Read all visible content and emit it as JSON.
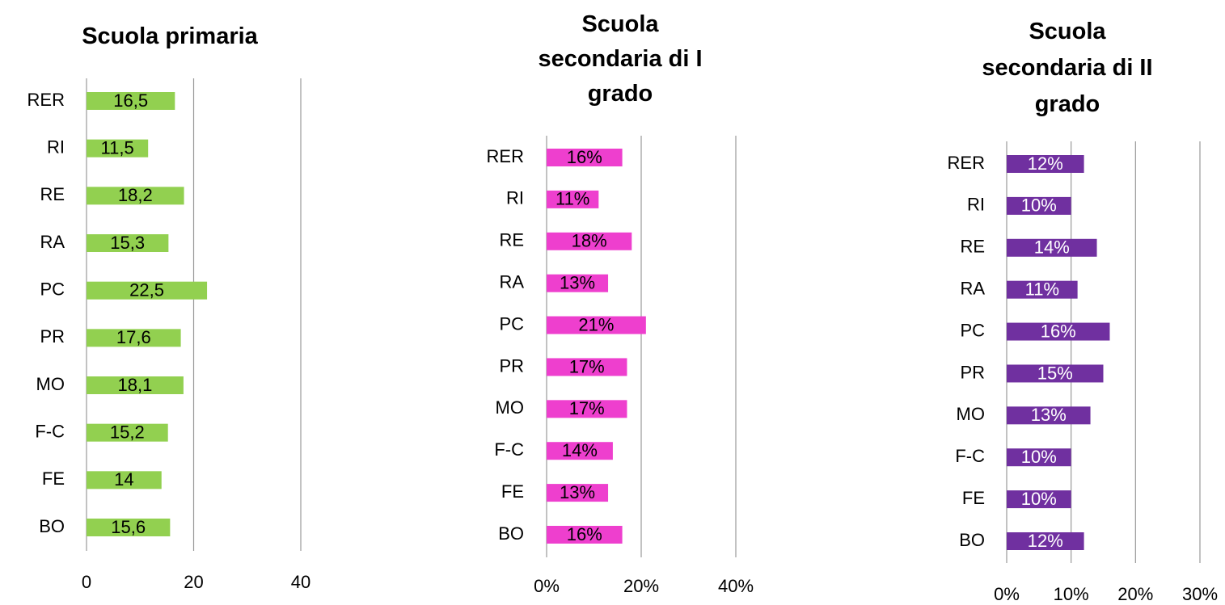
{
  "chart_data": [
    {
      "type": "barh",
      "title": "Scuola primaria",
      "categories": [
        "RER",
        "RI",
        "RE",
        "RA",
        "PC",
        "PR",
        "MO",
        "F-C",
        "FE",
        "BO"
      ],
      "values": [
        16.5,
        11.5,
        18.2,
        15.3,
        22.5,
        17.6,
        18.1,
        15.2,
        14,
        15.6
      ],
      "value_labels": [
        "16,5",
        "11,5",
        "18,2",
        "15,3",
        "22,5",
        "17,6",
        "18,1",
        "15,2",
        "14",
        "15,6"
      ],
      "color": "#92d050",
      "value_label_color": "#000000",
      "xlim": [
        0,
        40
      ],
      "xticks": [
        0,
        20,
        40
      ],
      "grid": true
    },
    {
      "type": "barh",
      "title": "Scuola secondaria di I grado",
      "categories": [
        "RER",
        "RI",
        "RE",
        "RA",
        "PC",
        "PR",
        "MO",
        "F-C",
        "FE",
        "BO"
      ],
      "values": [
        16,
        11,
        18,
        13,
        21,
        17,
        17,
        14,
        13,
        16
      ],
      "value_labels": [
        "16%",
        "11%",
        "18%",
        "13%",
        "21%",
        "17%",
        "17%",
        "14%",
        "13%",
        "16%"
      ],
      "color": "#ee3fce",
      "value_label_color": "#000000",
      "xlim": [
        0,
        40
      ],
      "xticks": [
        {
          "value": 0,
          "label": "0%"
        },
        {
          "value": 20,
          "label": "20%"
        },
        {
          "value": 40,
          "label": "40%"
        }
      ],
      "grid": true
    },
    {
      "type": "barh",
      "title": "Scuola secondaria di II grado",
      "categories": [
        "RER",
        "RI",
        "RE",
        "RA",
        "PC",
        "PR",
        "MO",
        "F-C",
        "FE",
        "BO"
      ],
      "values": [
        12,
        10,
        14,
        11,
        16,
        15,
        13,
        10,
        10,
        12
      ],
      "value_labels": [
        "12%",
        "10%",
        "14%",
        "11%",
        "16%",
        "15%",
        "13%",
        "10%",
        "10%",
        "12%"
      ],
      "color": "#7030a0",
      "value_label_color": "#ffffff",
      "xlim": [
        0,
        30
      ],
      "xticks": [
        {
          "value": 0,
          "label": "0%"
        },
        {
          "value": 10,
          "label": "10%"
        },
        {
          "value": 20,
          "label": "20%"
        },
        {
          "value": 30,
          "label": "30%"
        }
      ],
      "grid": true
    }
  ]
}
